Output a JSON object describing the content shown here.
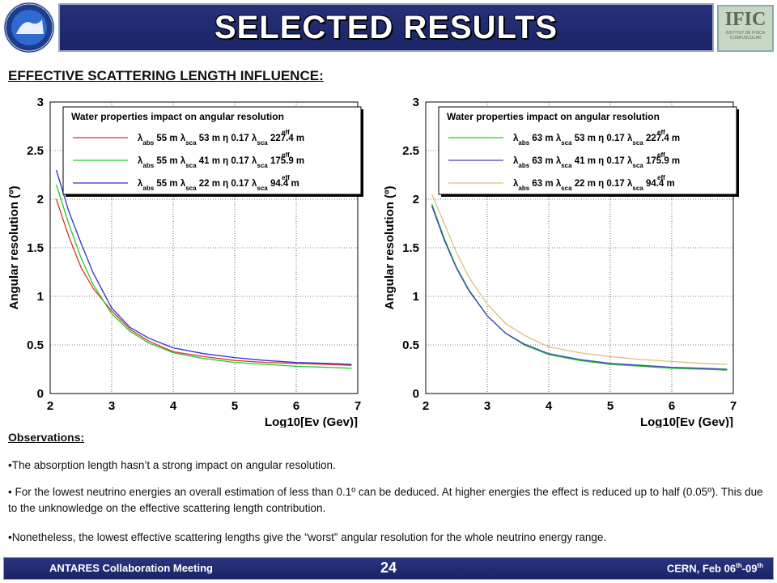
{
  "slide": {
    "title": "SELECTED RESULTS",
    "subtitle": "EFFECTIVE SCATTERING LENGTH INFLUENCE:",
    "logo_right_text": "IFIC",
    "logo_right_sub": "INSTITUT DE FÍSICA CORPUSCULAR",
    "observations_title": "Observations:",
    "bullets": [
      "•The absorption length hasn’t a strong impact on angular resolution.",
      "• For the lowest neutrino energies an overall estimation of less than 0.1º can be deduced. At higher energies the effect is reduced up to half (0.05º). This due to the unknowledge on the effective scattering length contribution.",
      "•Nonetheless, the lowest effective scattering lengths give the “worst” angular resolution for the whole neutrino energy range."
    ],
    "footer": {
      "left": "ANTARES Collaboration Meeting",
      "page": "24",
      "right_prefix": "CERN, Feb 06",
      "right_sup1": "th",
      "right_mid": "-09",
      "right_sup2": "th"
    }
  },
  "chart_data": [
    {
      "type": "line",
      "title": "Water properties impact on angular resolution",
      "xlabel": "Log10[Eν (Gev)]",
      "ylabel": "Angular resolution (º)",
      "xlim": [
        2,
        7
      ],
      "ylim": [
        0,
        3
      ],
      "xticks": [
        "2",
        "3",
        "4",
        "5",
        "6",
        "7"
      ],
      "yticks": [
        "0",
        "0.5",
        "1",
        "1.5",
        "2",
        "2.5",
        "3"
      ],
      "legend": "top",
      "grid": true,
      "series": [
        {
          "name": "λabs 55 m λsca 53 m η 0.17 λsca eff 227.4 m",
          "abs": "55 m",
          "sca": "53 m",
          "eta": "0.17",
          "eff": "227.4 m",
          "color": "#e03030",
          "x": [
            2.1,
            2.3,
            2.5,
            2.7,
            3.0,
            3.3,
            3.6,
            4.0,
            4.5,
            5.0,
            5.5,
            6.0,
            6.5,
            6.9
          ],
          "y": [
            2.0,
            1.62,
            1.3,
            1.08,
            0.85,
            0.66,
            0.54,
            0.43,
            0.38,
            0.34,
            0.32,
            0.31,
            0.3,
            0.29
          ]
        },
        {
          "name": "λabs 55 m λsca 41 m η 0.17 λsca eff 175.9 m",
          "abs": "55 m",
          "sca": "41 m",
          "eta": "0.17",
          "eff": "175.9 m",
          "color": "#22cc22",
          "x": [
            2.1,
            2.3,
            2.5,
            2.7,
            3.0,
            3.3,
            3.6,
            4.0,
            4.5,
            5.0,
            5.5,
            6.0,
            6.5,
            6.9
          ],
          "y": [
            2.15,
            1.75,
            1.4,
            1.12,
            0.82,
            0.64,
            0.52,
            0.42,
            0.36,
            0.32,
            0.3,
            0.28,
            0.27,
            0.26
          ]
        },
        {
          "name": "λabs 55 m λsca 22 m η 0.17 λsca eff 94.4 m",
          "abs": "55 m",
          "sca": "22 m",
          "eta": "0.17",
          "eff": "94.4 m",
          "color": "#3030d0",
          "x": [
            2.1,
            2.3,
            2.5,
            2.7,
            3.0,
            3.3,
            3.6,
            4.0,
            4.5,
            5.0,
            5.5,
            6.0,
            6.5,
            6.9
          ],
          "y": [
            2.3,
            1.88,
            1.55,
            1.24,
            0.88,
            0.68,
            0.57,
            0.47,
            0.41,
            0.37,
            0.34,
            0.32,
            0.31,
            0.3
          ]
        }
      ]
    },
    {
      "type": "line",
      "title": "Water properties impact on angular resolution",
      "xlabel": "Log10[Eν (Gev)]",
      "ylabel": "Angular resolution (º)",
      "xlim": [
        2,
        7
      ],
      "ylim": [
        0,
        3
      ],
      "xticks": [
        "2",
        "3",
        "4",
        "5",
        "6",
        "7"
      ],
      "yticks": [
        "0",
        "0.5",
        "1",
        "1.5",
        "2",
        "2.5",
        "3"
      ],
      "legend": "top",
      "grid": true,
      "series": [
        {
          "name": "λabs 63 m λsca 53 m η 0.17 λsca eff 227.4 m",
          "abs": "63 m",
          "sca": "53 m",
          "eta": "0.17",
          "eff": "227.4 m",
          "color": "#22cc22",
          "x": [
            2.1,
            2.3,
            2.5,
            2.7,
            3.0,
            3.3,
            3.6,
            4.0,
            4.5,
            5.0,
            5.5,
            6.0,
            6.5,
            6.9
          ],
          "y": [
            1.95,
            1.6,
            1.3,
            1.07,
            0.8,
            0.62,
            0.5,
            0.4,
            0.34,
            0.3,
            0.28,
            0.26,
            0.25,
            0.24
          ]
        },
        {
          "name": "λabs 63 m λsca 41 m η 0.17 λsca eff 175.9 m",
          "abs": "63 m",
          "sca": "41 m",
          "eta": "0.17",
          "eff": "175.9 m",
          "color": "#4040c0",
          "x": [
            2.1,
            2.3,
            2.5,
            2.7,
            3.0,
            3.3,
            3.6,
            4.0,
            4.5,
            5.0,
            5.5,
            6.0,
            6.5,
            6.9
          ],
          "y": [
            1.93,
            1.58,
            1.29,
            1.06,
            0.8,
            0.62,
            0.51,
            0.41,
            0.35,
            0.31,
            0.29,
            0.27,
            0.26,
            0.25
          ]
        },
        {
          "name": "λabs 63 m λsca 22 m η 0.17 λsca eff 94.4 m",
          "abs": "63 m",
          "sca": "22 m",
          "eta": "0.17",
          "eff": "94.4 m",
          "color": "#d8c080",
          "x": [
            2.1,
            2.3,
            2.5,
            2.7,
            3.0,
            3.3,
            3.6,
            4.0,
            4.5,
            5.0,
            5.5,
            6.0,
            6.5,
            6.9
          ],
          "y": [
            2.05,
            1.75,
            1.45,
            1.2,
            0.92,
            0.72,
            0.6,
            0.48,
            0.42,
            0.38,
            0.35,
            0.33,
            0.31,
            0.3
          ]
        }
      ]
    }
  ]
}
